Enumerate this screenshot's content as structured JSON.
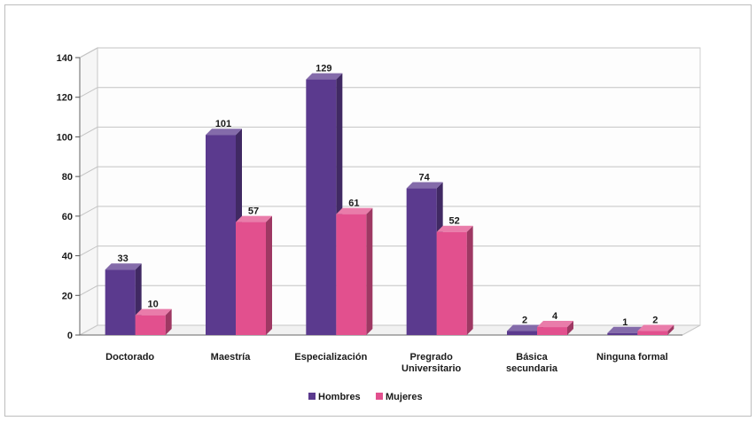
{
  "chart_data": {
    "type": "bar",
    "categories": [
      "Doctorado",
      "Maestría",
      "Especialización",
      "Pregrado Universitario",
      "Básica secundaria",
      "Ninguna formal"
    ],
    "series": [
      {
        "name": "Hombres",
        "values": [
          33,
          101,
          129,
          74,
          2,
          1
        ],
        "color": "#5b3a8e"
      },
      {
        "name": "Mujeres",
        "values": [
          10,
          57,
          61,
          52,
          4,
          2
        ],
        "color": "#e2508e"
      }
    ],
    "yticks": [
      0,
      20,
      40,
      60,
      80,
      100,
      120,
      140
    ],
    "ylim": [
      0,
      140
    ],
    "grid": true,
    "legend": "bottom",
    "style": "3d-column"
  }
}
